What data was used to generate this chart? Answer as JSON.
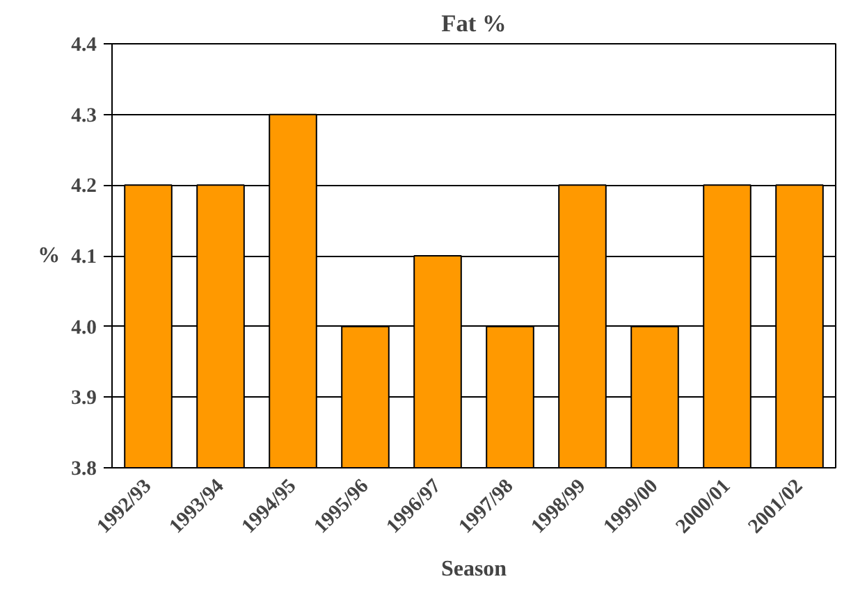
{
  "chart_data": {
    "type": "bar",
    "title": "Fat %",
    "xlabel": "Season",
    "ylabel": "%",
    "categories": [
      "1992/93",
      "1993/94",
      "1994/95",
      "1995/96",
      "1996/97",
      "1997/98",
      "1998/99",
      "1999/00",
      "2000/01",
      "2001/02"
    ],
    "values": [
      4.2,
      4.2,
      4.3,
      4.0,
      4.1,
      4.0,
      4.2,
      4.0,
      4.2,
      4.2
    ],
    "color": "#ff9900",
    "ylim": [
      3.8,
      4.4
    ],
    "yticks": [
      {
        "value": 3.8,
        "label": "3.8"
      },
      {
        "value": 3.9,
        "label": "3.9"
      },
      {
        "value": 4.0,
        "label": "4.0"
      },
      {
        "value": 4.1,
        "label": "4.1"
      },
      {
        "value": 4.2,
        "label": "4.2"
      },
      {
        "value": 4.3,
        "label": "4.3"
      },
      {
        "value": 4.4,
        "label": "4.4"
      }
    ],
    "grid": "y"
  }
}
